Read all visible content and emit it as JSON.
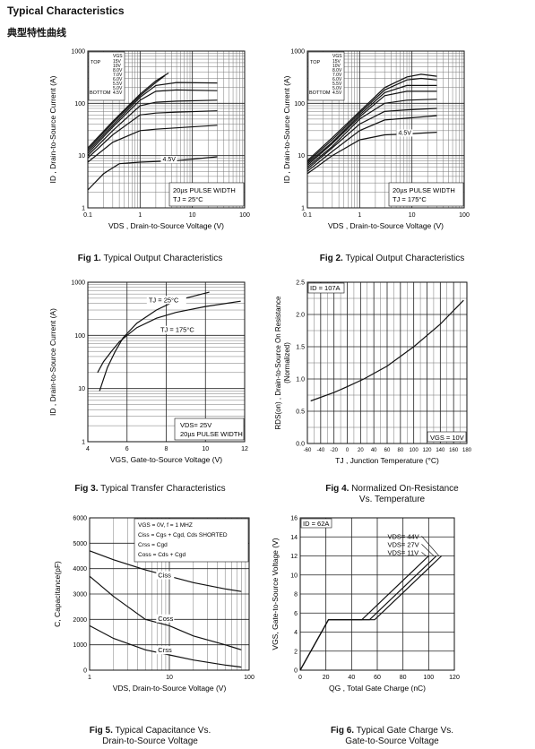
{
  "page": {
    "title": "Typical Characteristics",
    "subtitle": "典型特性曲线"
  },
  "figures": [
    {
      "id": "fig1",
      "num": "Fig 1.",
      "caption": "Typical Output Characteristics",
      "caption2": ""
    },
    {
      "id": "fig2",
      "num": "Fig 2.",
      "caption": "Typical Output Characteristics",
      "caption2": ""
    },
    {
      "id": "fig3",
      "num": "Fig 3.",
      "caption": "Typical Transfer Characteristics",
      "caption2": ""
    },
    {
      "id": "fig4",
      "num": "Fig 4.",
      "caption": "Normalized On-Resistance",
      "caption2": "Vs. Temperature"
    },
    {
      "id": "fig5",
      "num": "Fig 5.",
      "caption": "Typical Capacitance Vs.",
      "caption2": "Drain-to-Source Voltage"
    },
    {
      "id": "fig6",
      "num": "Fig 6.",
      "caption": "Typical Gate Charge Vs.",
      "caption2": "Gate-to-Source Voltage"
    }
  ],
  "chart_data": [
    {
      "type": "line",
      "xscale": "log",
      "yscale": "log",
      "xlim": [
        0.1,
        100
      ],
      "ylim": [
        1,
        1000
      ],
      "xticks": [
        "0.1",
        "1",
        "10",
        "100"
      ],
      "yticks": [
        "1",
        "10",
        "100",
        "1000"
      ],
      "xlabel": "VDS , Drain-to-Source Voltage (V)",
      "ylabel": "ID , Drain-to-Source Current (A)",
      "legend": {
        "header": "VGS",
        "top_label": "TOP",
        "bottom_label": "BOTTOM",
        "entries": [
          "15V",
          "10V",
          "8.0V",
          "7.0V",
          "6.0V",
          "5.5V",
          "5.0V",
          "4.5V"
        ]
      },
      "annotations": [
        "20µs PULSE WIDTH",
        "TJ = 25°C",
        "4.5V"
      ],
      "series": [
        {
          "name": "15V",
          "x": [
            0.1,
            0.3,
            1,
            2,
            3.5
          ],
          "y": [
            14,
            45,
            150,
            270,
            380
          ]
        },
        {
          "name": "10V",
          "x": [
            0.1,
            0.3,
            1,
            2,
            3
          ],
          "y": [
            13,
            42,
            140,
            250,
            340
          ]
        },
        {
          "name": "8.0V",
          "x": [
            0.1,
            0.3,
            1,
            2,
            5,
            30
          ],
          "y": [
            12,
            38,
            130,
            220,
            250,
            245
          ]
        },
        {
          "name": "7.0V",
          "x": [
            0.1,
            0.3,
            1,
            2,
            5,
            30
          ],
          "y": [
            11,
            35,
            115,
            170,
            180,
            175
          ]
        },
        {
          "name": "6.0V",
          "x": [
            0.1,
            0.3,
            1,
            2,
            5,
            30
          ],
          "y": [
            10,
            30,
            90,
            105,
            110,
            115
          ]
        },
        {
          "name": "5.5V",
          "x": [
            0.1,
            0.3,
            1,
            2,
            5,
            30
          ],
          "y": [
            9,
            25,
            60,
            65,
            68,
            72
          ]
        },
        {
          "name": "5.0V",
          "x": [
            0.1,
            0.3,
            1,
            2,
            5,
            30
          ],
          "y": [
            7.5,
            18,
            30,
            32,
            34,
            38
          ]
        },
        {
          "name": "4.5V",
          "x": [
            0.1,
            0.2,
            0.4,
            1,
            5,
            30
          ],
          "y": [
            2.2,
            4.5,
            7,
            7.5,
            8,
            9.5
          ]
        }
      ]
    },
    {
      "type": "line",
      "xscale": "log",
      "yscale": "log",
      "xlim": [
        0.1,
        100
      ],
      "ylim": [
        1,
        1000
      ],
      "xticks": [
        "0.1",
        "1",
        "10",
        "100"
      ],
      "yticks": [
        "1",
        "10",
        "100",
        "1000"
      ],
      "xlabel": "VDS , Drain-to-Source Voltage (V)",
      "ylabel": "ID , Drain-to-Source Current (A)",
      "legend": {
        "header": "VGS",
        "top_label": "TOP",
        "bottom_label": "BOTTOM",
        "entries": [
          "15V",
          "10V",
          "8.0V",
          "7.0V",
          "6.0V",
          "5.5V",
          "5.0V",
          "4.5V"
        ]
      },
      "annotations": [
        "20µs PULSE WIDTH",
        "TJ = 175°C",
        "4.5V"
      ],
      "series": [
        {
          "name": "15V",
          "x": [
            0.1,
            0.3,
            1,
            3,
            8,
            15,
            30
          ],
          "y": [
            8,
            22,
            70,
            200,
            320,
            360,
            330
          ]
        },
        {
          "name": "10V",
          "x": [
            0.1,
            0.3,
            1,
            3,
            8,
            15,
            30
          ],
          "y": [
            7.5,
            20,
            65,
            180,
            280,
            300,
            280
          ]
        },
        {
          "name": "8.0V",
          "x": [
            0.1,
            0.3,
            1,
            3,
            8,
            30
          ],
          "y": [
            7,
            18,
            60,
            160,
            220,
            220
          ]
        },
        {
          "name": "7.0V",
          "x": [
            0.1,
            0.3,
            1,
            3,
            8,
            30
          ],
          "y": [
            6.5,
            17,
            55,
            140,
            170,
            170
          ]
        },
        {
          "name": "6.0V",
          "x": [
            0.1,
            0.3,
            1,
            3,
            8,
            30
          ],
          "y": [
            6,
            15,
            50,
            100,
            115,
            120
          ]
        },
        {
          "name": "5.5V",
          "x": [
            0.1,
            0.3,
            1,
            3,
            8,
            30
          ],
          "y": [
            5.5,
            14,
            40,
            70,
            75,
            80
          ]
        },
        {
          "name": "5.0V",
          "x": [
            0.1,
            0.3,
            1,
            3,
            8,
            30
          ],
          "y": [
            5,
            12,
            30,
            48,
            52,
            58
          ]
        },
        {
          "name": "4.5V",
          "x": [
            0.1,
            0.3,
            1,
            3,
            8,
            30
          ],
          "y": [
            4.5,
            10,
            20,
            25,
            26,
            28
          ]
        }
      ]
    },
    {
      "type": "line",
      "xscale": "linear",
      "yscale": "log",
      "xlim": [
        4,
        12
      ],
      "ylim": [
        1,
        1000
      ],
      "xticks": [
        "4",
        "6",
        "8",
        "10",
        "12"
      ],
      "yticks": [
        "1",
        "10",
        "100",
        "1000"
      ],
      "xlabel": "VGS, Gate-to-Source Voltage (V)",
      "ylabel": "ID , Drain-to-Source Current (A)",
      "annotations": [
        "VDS= 25V",
        "20µs PULSE WIDTH"
      ],
      "series": [
        {
          "name": "TJ = 25°C",
          "x": [
            4.6,
            4.8,
            5.0,
            5.4,
            5.8,
            6.5,
            7.5,
            8.5,
            10.2
          ],
          "y": [
            9,
            15,
            25,
            50,
            90,
            170,
            300,
            450,
            650
          ]
        },
        {
          "name": "TJ = 175°C",
          "x": [
            4.5,
            4.8,
            5.2,
            5.6,
            6.0,
            6.5,
            7.5,
            8.5,
            10,
            11.8
          ],
          "y": [
            20,
            32,
            50,
            75,
            100,
            140,
            210,
            270,
            350,
            440
          ]
        }
      ]
    },
    {
      "type": "line",
      "xscale": "linear",
      "yscale": "linear",
      "xlim": [
        -60,
        180
      ],
      "ylim": [
        0,
        2.5
      ],
      "xticks": [
        "-60",
        "-40",
        "-20",
        "0",
        "20",
        "40",
        "60",
        "80",
        "100",
        "120",
        "140",
        "160",
        "180"
      ],
      "yticks": [
        "0.0",
        "0.5",
        "1.0",
        "1.5",
        "2.0",
        "2.5"
      ],
      "xlabel": "TJ , Junction Temperature (°C)",
      "ylabel": "RDS(on) , Drain-to-Source On Resistance (Normalized)",
      "annotations": [
        "ID = 107A",
        "VGS = 10V"
      ],
      "series": [
        {
          "name": "",
          "x": [
            -55,
            -20,
            0,
            25,
            60,
            100,
            140,
            175
          ],
          "y": [
            0.66,
            0.79,
            0.88,
            1.0,
            1.2,
            1.5,
            1.85,
            2.22
          ]
        }
      ]
    },
    {
      "type": "line",
      "xscale": "log",
      "yscale": "linear",
      "xlim": [
        1,
        100
      ],
      "ylim": [
        0,
        6000
      ],
      "xticks": [
        "1",
        "10",
        "100"
      ],
      "yticks": [
        "0",
        "1000",
        "2000",
        "3000",
        "4000",
        "5000",
        "6000"
      ],
      "xlabel": "VDS, Drain-to-Source Voltage (V)",
      "ylabel": "C, Capacitance(pF)",
      "legend_text": [
        "VGS = 0V,    f = 1 MHZ",
        "Ciss = Cgs + Cgd, Cds SHORTED",
        "Crss = Cgd",
        "Coss = Cds + Cgd"
      ],
      "series": [
        {
          "name": "Ciss",
          "x": [
            1,
            2,
            5,
            10,
            20,
            50,
            80
          ],
          "y": [
            4700,
            4350,
            3950,
            3700,
            3450,
            3200,
            3100
          ]
        },
        {
          "name": "Coss",
          "x": [
            1,
            2,
            5,
            10,
            20,
            50,
            80
          ],
          "y": [
            3700,
            2900,
            2000,
            1750,
            1350,
            1000,
            800
          ]
        },
        {
          "name": "Crss",
          "x": [
            1,
            2,
            5,
            10,
            20,
            50,
            80
          ],
          "y": [
            1750,
            1250,
            800,
            600,
            400,
            200,
            120
          ]
        }
      ]
    },
    {
      "type": "line",
      "xscale": "linear",
      "yscale": "linear",
      "xlim": [
        0,
        120
      ],
      "ylim": [
        0,
        16
      ],
      "xticks": [
        "0",
        "20",
        "40",
        "60",
        "80",
        "100",
        "120"
      ],
      "yticks": [
        "0",
        "2",
        "4",
        "6",
        "8",
        "10",
        "12",
        "14",
        "16"
      ],
      "xlabel": "QG , Total Gate Charge (nC)",
      "ylabel": "VGS, Gate-to-Source Voltage (V)",
      "annotations": [
        "ID = 62A"
      ],
      "series": [
        {
          "name": "VDS= 44V",
          "x": [
            0,
            22,
            58,
            110
          ],
          "y": [
            0,
            5.3,
            5.3,
            12
          ]
        },
        {
          "name": "VDS= 27V",
          "x": [
            0,
            22,
            54,
            106
          ],
          "y": [
            0,
            5.3,
            5.3,
            12
          ]
        },
        {
          "name": "VDS= 11V",
          "x": [
            0,
            22,
            48,
            100
          ],
          "y": [
            0,
            5.3,
            5.3,
            12
          ]
        }
      ]
    }
  ]
}
